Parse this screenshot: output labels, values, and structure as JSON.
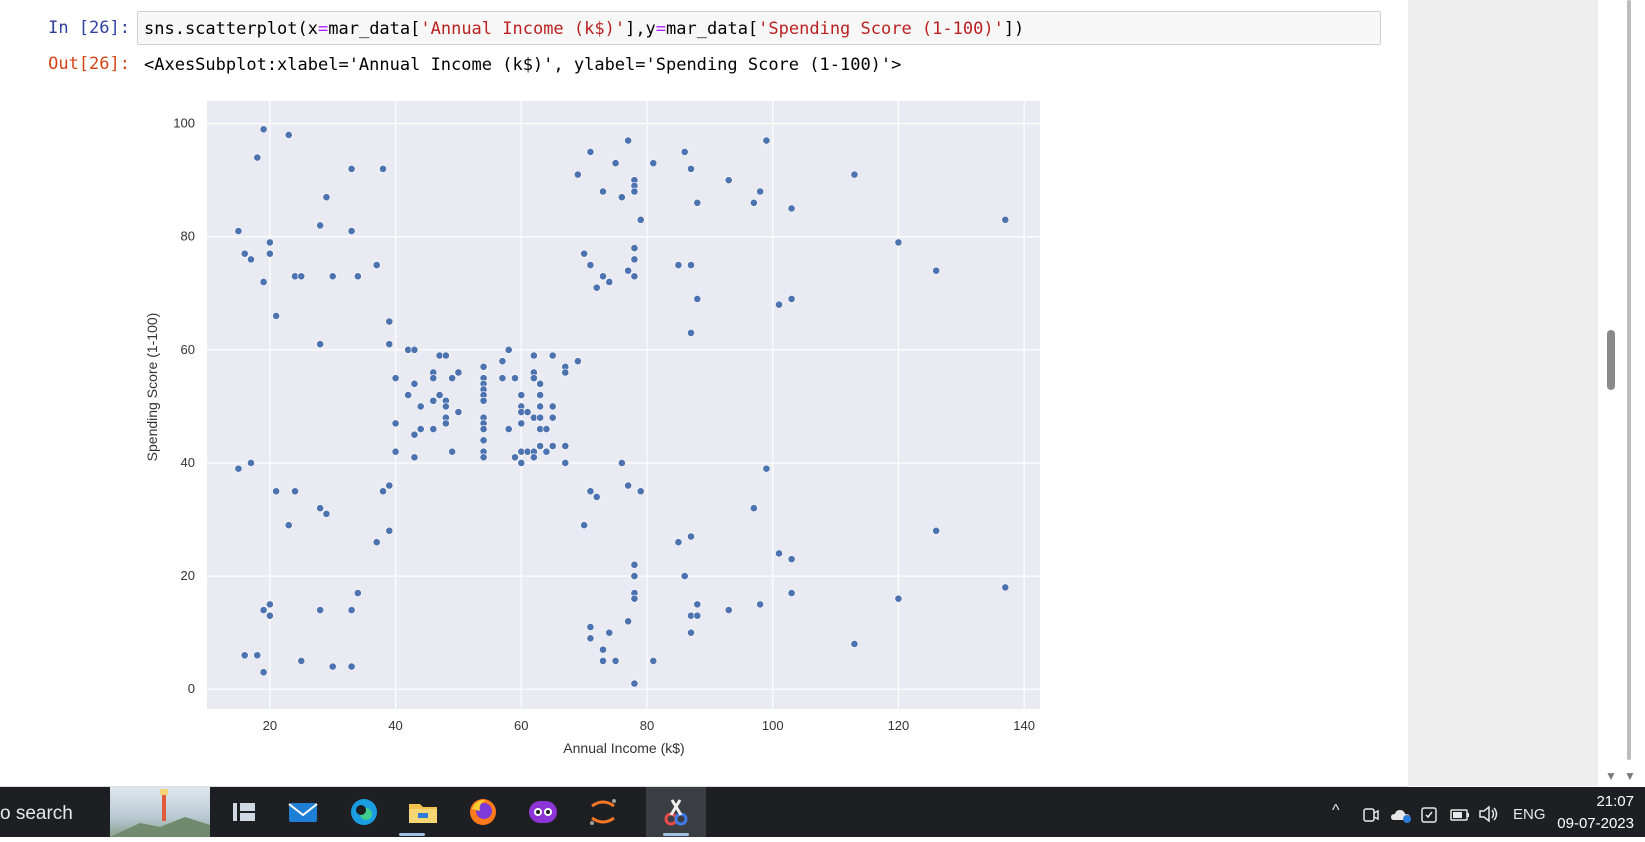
{
  "cell": {
    "in_prompt": "In [26]:",
    "out_prompt": "Out[26]:",
    "code": {
      "p1": "sns.scatterplot(x",
      "eq1": "=",
      "p2": "mar_data[",
      "s1": "'Annual Income (k$)'",
      "p3": "],y",
      "eq2": "=",
      "p4": "mar_data[",
      "s2": "'Spending Score (1-100)'",
      "p5": "])"
    },
    "output_text": "<AxesSubplot:xlabel='Annual Income (k$)', ylabel='Spending Score (1-100)'>"
  },
  "chart_data": {
    "type": "scatter",
    "xlabel": "Annual Income (k$)",
    "ylabel": "Spending Score (1-100)",
    "xlim": [
      10,
      143
    ],
    "ylim": [
      -3.5,
      104
    ],
    "xticks": [
      20,
      40,
      60,
      80,
      100,
      120,
      140
    ],
    "yticks": [
      0,
      20,
      40,
      60,
      80,
      100
    ],
    "grid": true,
    "colors": {
      "point": "#4c72b0",
      "background": "#eaeaf2",
      "grid": "#ffffff"
    },
    "points": [
      [
        15,
        81
      ],
      [
        15,
        39
      ],
      [
        16,
        77
      ],
      [
        16,
        6
      ],
      [
        17,
        76
      ],
      [
        17,
        40
      ],
      [
        18,
        94
      ],
      [
        18,
        6
      ],
      [
        19,
        99
      ],
      [
        19,
        72
      ],
      [
        19,
        14
      ],
      [
        19,
        3
      ],
      [
        20,
        79
      ],
      [
        20,
        77
      ],
      [
        20,
        15
      ],
      [
        20,
        13
      ],
      [
        21,
        66
      ],
      [
        21,
        35
      ],
      [
        23,
        98
      ],
      [
        23,
        29
      ],
      [
        24,
        73
      ],
      [
        24,
        35
      ],
      [
        25,
        73
      ],
      [
        25,
        5
      ],
      [
        28,
        82
      ],
      [
        28,
        61
      ],
      [
        28,
        32
      ],
      [
        28,
        14
      ],
      [
        29,
        87
      ],
      [
        29,
        31
      ],
      [
        30,
        73
      ],
      [
        30,
        4
      ],
      [
        33,
        92
      ],
      [
        33,
        81
      ],
      [
        33,
        14
      ],
      [
        33,
        4
      ],
      [
        34,
        73
      ],
      [
        34,
        17
      ],
      [
        37,
        75
      ],
      [
        37,
        26
      ],
      [
        38,
        92
      ],
      [
        38,
        35
      ],
      [
        39,
        65
      ],
      [
        39,
        61
      ],
      [
        39,
        36
      ],
      [
        39,
        28
      ],
      [
        40,
        55
      ],
      [
        40,
        47
      ],
      [
        40,
        42
      ],
      [
        42,
        60
      ],
      [
        42,
        52
      ],
      [
        43,
        60
      ],
      [
        43,
        54
      ],
      [
        43,
        45
      ],
      [
        43,
        41
      ],
      [
        44,
        50
      ],
      [
        44,
        46
      ],
      [
        46,
        56
      ],
      [
        46,
        55
      ],
      [
        46,
        51
      ],
      [
        46,
        46
      ],
      [
        47,
        59
      ],
      [
        47,
        52
      ],
      [
        48,
        59
      ],
      [
        48,
        51
      ],
      [
        48,
        50
      ],
      [
        48,
        48
      ],
      [
        48,
        47
      ],
      [
        49,
        55
      ],
      [
        49,
        42
      ],
      [
        50,
        56
      ],
      [
        50,
        49
      ],
      [
        54,
        57
      ],
      [
        54,
        55
      ],
      [
        54,
        54
      ],
      [
        54,
        53
      ],
      [
        54,
        52
      ],
      [
        54,
        51
      ],
      [
        54,
        48
      ],
      [
        54,
        47
      ],
      [
        54,
        46
      ],
      [
        54,
        44
      ],
      [
        54,
        42
      ],
      [
        54,
        41
      ],
      [
        57,
        58
      ],
      [
        57,
        55
      ],
      [
        58,
        60
      ],
      [
        58,
        46
      ],
      [
        59,
        55
      ],
      [
        59,
        41
      ],
      [
        60,
        52
      ],
      [
        60,
        50
      ],
      [
        60,
        49
      ],
      [
        60,
        47
      ],
      [
        60,
        42
      ],
      [
        60,
        40
      ],
      [
        61,
        49
      ],
      [
        61,
        42
      ],
      [
        62,
        59
      ],
      [
        62,
        56
      ],
      [
        62,
        55
      ],
      [
        62,
        48
      ],
      [
        62,
        42
      ],
      [
        62,
        41
      ],
      [
        63,
        54
      ],
      [
        63,
        52
      ],
      [
        63,
        50
      ],
      [
        63,
        48
      ],
      [
        63,
        46
      ],
      [
        63,
        43
      ],
      [
        64,
        46
      ],
      [
        64,
        42
      ],
      [
        65,
        59
      ],
      [
        65,
        50
      ],
      [
        65,
        48
      ],
      [
        65,
        43
      ],
      [
        67,
        57
      ],
      [
        67,
        56
      ],
      [
        67,
        43
      ],
      [
        67,
        40
      ],
      [
        69,
        58
      ],
      [
        69,
        91
      ],
      [
        70,
        77
      ],
      [
        70,
        29
      ],
      [
        71,
        95
      ],
      [
        71,
        75
      ],
      [
        71,
        35
      ],
      [
        71,
        11
      ],
      [
        71,
        9
      ],
      [
        72,
        71
      ],
      [
        72,
        34
      ],
      [
        73,
        88
      ],
      [
        73,
        73
      ],
      [
        73,
        7
      ],
      [
        73,
        5
      ],
      [
        74,
        72
      ],
      [
        74,
        10
      ],
      [
        75,
        93
      ],
      [
        75,
        5
      ],
      [
        76,
        87
      ],
      [
        76,
        40
      ],
      [
        77,
        97
      ],
      [
        77,
        74
      ],
      [
        77,
        36
      ],
      [
        77,
        12
      ],
      [
        78,
        90
      ],
      [
        78,
        89
      ],
      [
        78,
        88
      ],
      [
        78,
        78
      ],
      [
        78,
        76
      ],
      [
        78,
        73
      ],
      [
        78,
        22
      ],
      [
        78,
        20
      ],
      [
        78,
        17
      ],
      [
        78,
        16
      ],
      [
        78,
        1
      ],
      [
        79,
        83
      ],
      [
        79,
        35
      ],
      [
        81,
        93
      ],
      [
        81,
        5
      ],
      [
        85,
        75
      ],
      [
        85,
        26
      ],
      [
        86,
        95
      ],
      [
        86,
        20
      ],
      [
        87,
        92
      ],
      [
        87,
        75
      ],
      [
        87,
        63
      ],
      [
        87,
        27
      ],
      [
        87,
        13
      ],
      [
        87,
        10
      ],
      [
        88,
        86
      ],
      [
        88,
        69
      ],
      [
        88,
        15
      ],
      [
        88,
        13
      ],
      [
        93,
        90
      ],
      [
        93,
        14
      ],
      [
        97,
        86
      ],
      [
        97,
        32
      ],
      [
        98,
        88
      ],
      [
        98,
        15
      ],
      [
        99,
        97
      ],
      [
        99,
        39
      ],
      [
        101,
        68
      ],
      [
        101,
        24
      ],
      [
        103,
        85
      ],
      [
        103,
        69
      ],
      [
        103,
        23
      ],
      [
        103,
        17
      ],
      [
        113,
        91
      ],
      [
        113,
        8
      ],
      [
        120,
        79
      ],
      [
        120,
        16
      ],
      [
        126,
        74
      ],
      [
        126,
        28
      ],
      [
        137,
        83
      ],
      [
        137,
        18
      ]
    ]
  },
  "taskbar": {
    "search_label": "o search",
    "tray": {
      "up_arrow": "^",
      "lang": "ENG"
    },
    "clock": {
      "time": "21:07",
      "date": "09-07-2023"
    }
  }
}
